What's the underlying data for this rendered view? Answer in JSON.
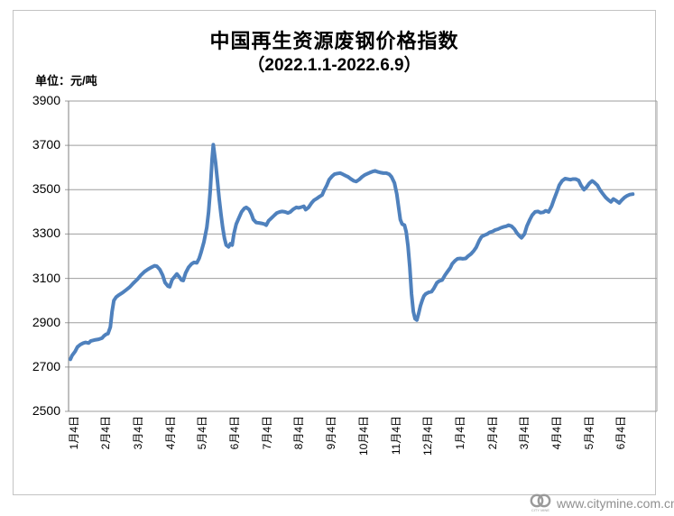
{
  "header": {
    "title_line1": "中国再生资源废钢价格指数",
    "title_line2": "（2022.1.1-2022.6.9）",
    "unit_label": "单位：元/吨"
  },
  "watermark": {
    "url_text": "www.citymine.com.cn",
    "logo_caption": "CITY MINE",
    "text_color": "#8f8f8f"
  },
  "chart_data": {
    "type": "line",
    "title": "中国再生资源废钢价格指数（2022.1.1-2022.6.9）",
    "ylabel": "单位：元/吨",
    "ylim": [
      2500,
      3900
    ],
    "y_ticks": [
      3900,
      3700,
      3500,
      3300,
      3100,
      2900,
      2700,
      2500
    ],
    "x_tick_labels": [
      "1月4日",
      "2月4日",
      "3月4日",
      "4月4日",
      "5月4日",
      "6月4日",
      "7月4日",
      "8月4日",
      "9月4日",
      "10月4日",
      "11月4日",
      "12月4日",
      "1月4日",
      "2月4日",
      "3月4日",
      "4月4日",
      "5月4日",
      "6月4日"
    ],
    "grid": "horizontal",
    "legend_position": "none",
    "line_color": "#4f81bd",
    "grid_color": "#9e9e9e",
    "axis_color": "#7f7f7f",
    "points": [
      [
        0.003,
        2735
      ],
      [
        0.006,
        2752
      ],
      [
        0.011,
        2770
      ],
      [
        0.015,
        2790
      ],
      [
        0.02,
        2801
      ],
      [
        0.025,
        2808
      ],
      [
        0.029,
        2811
      ],
      [
        0.034,
        2808
      ],
      [
        0.038,
        2818
      ],
      [
        0.044,
        2822
      ],
      [
        0.051,
        2825
      ],
      [
        0.057,
        2831
      ],
      [
        0.06,
        2840
      ],
      [
        0.064,
        2848
      ],
      [
        0.067,
        2851
      ],
      [
        0.071,
        2880
      ],
      [
        0.074,
        2950
      ],
      [
        0.077,
        3000
      ],
      [
        0.081,
        3016
      ],
      [
        0.086,
        3026
      ],
      [
        0.092,
        3036
      ],
      [
        0.098,
        3048
      ],
      [
        0.104,
        3061
      ],
      [
        0.11,
        3078
      ],
      [
        0.117,
        3096
      ],
      [
        0.123,
        3115
      ],
      [
        0.129,
        3130
      ],
      [
        0.135,
        3141
      ],
      [
        0.141,
        3150
      ],
      [
        0.146,
        3157
      ],
      [
        0.15,
        3155
      ],
      [
        0.155,
        3140
      ],
      [
        0.16,
        3114
      ],
      [
        0.164,
        3081
      ],
      [
        0.169,
        3065
      ],
      [
        0.172,
        3062
      ],
      [
        0.176,
        3094
      ],
      [
        0.181,
        3110
      ],
      [
        0.184,
        3120
      ],
      [
        0.189,
        3104
      ],
      [
        0.192,
        3092
      ],
      [
        0.195,
        3090
      ],
      [
        0.199,
        3124
      ],
      [
        0.204,
        3150
      ],
      [
        0.209,
        3165
      ],
      [
        0.213,
        3172
      ],
      [
        0.218,
        3170
      ],
      [
        0.222,
        3190
      ],
      [
        0.225,
        3215
      ],
      [
        0.23,
        3264
      ],
      [
        0.235,
        3330
      ],
      [
        0.238,
        3400
      ],
      [
        0.241,
        3500
      ],
      [
        0.244,
        3640
      ],
      [
        0.246,
        3703
      ],
      [
        0.25,
        3620
      ],
      [
        0.253,
        3540
      ],
      [
        0.256,
        3460
      ],
      [
        0.259,
        3390
      ],
      [
        0.262,
        3330
      ],
      [
        0.265,
        3280
      ],
      [
        0.268,
        3250
      ],
      [
        0.272,
        3242
      ],
      [
        0.275,
        3256
      ],
      [
        0.278,
        3250
      ],
      [
        0.281,
        3300
      ],
      [
        0.285,
        3345
      ],
      [
        0.29,
        3376
      ],
      [
        0.294,
        3400
      ],
      [
        0.299,
        3416
      ],
      [
        0.302,
        3420
      ],
      [
        0.307,
        3410
      ],
      [
        0.311,
        3388
      ],
      [
        0.314,
        3366
      ],
      [
        0.319,
        3352
      ],
      [
        0.324,
        3350
      ],
      [
        0.328,
        3348
      ],
      [
        0.333,
        3345
      ],
      [
        0.336,
        3340
      ],
      [
        0.34,
        3360
      ],
      [
        0.345,
        3372
      ],
      [
        0.35,
        3385
      ],
      [
        0.354,
        3395
      ],
      [
        0.359,
        3400
      ],
      [
        0.363,
        3402
      ],
      [
        0.368,
        3400
      ],
      [
        0.373,
        3395
      ],
      [
        0.377,
        3400
      ],
      [
        0.382,
        3412
      ],
      [
        0.387,
        3420
      ],
      [
        0.391,
        3418
      ],
      [
        0.396,
        3422
      ],
      [
        0.4,
        3425
      ],
      [
        0.403,
        3410
      ],
      [
        0.408,
        3420
      ],
      [
        0.413,
        3440
      ],
      [
        0.417,
        3452
      ],
      [
        0.422,
        3460
      ],
      [
        0.426,
        3468
      ],
      [
        0.431,
        3476
      ],
      [
        0.434,
        3495
      ],
      [
        0.439,
        3520
      ],
      [
        0.443,
        3545
      ],
      [
        0.448,
        3561
      ],
      [
        0.452,
        3570
      ],
      [
        0.457,
        3573
      ],
      [
        0.462,
        3575
      ],
      [
        0.466,
        3570
      ],
      [
        0.471,
        3563
      ],
      [
        0.475,
        3558
      ],
      [
        0.48,
        3548
      ],
      [
        0.485,
        3540
      ],
      [
        0.489,
        3537
      ],
      [
        0.494,
        3546
      ],
      [
        0.499,
        3558
      ],
      [
        0.503,
        3566
      ],
      [
        0.508,
        3572
      ],
      [
        0.512,
        3577
      ],
      [
        0.517,
        3582
      ],
      [
        0.521,
        3585
      ],
      [
        0.526,
        3580
      ],
      [
        0.531,
        3577
      ],
      [
        0.535,
        3575
      ],
      [
        0.54,
        3575
      ],
      [
        0.545,
        3570
      ],
      [
        0.549,
        3558
      ],
      [
        0.554,
        3530
      ],
      [
        0.558,
        3480
      ],
      [
        0.561,
        3420
      ],
      [
        0.564,
        3365
      ],
      [
        0.567,
        3345
      ],
      [
        0.571,
        3340
      ],
      [
        0.574,
        3310
      ],
      [
        0.577,
        3245
      ],
      [
        0.58,
        3150
      ],
      [
        0.583,
        3030
      ],
      [
        0.586,
        2950
      ],
      [
        0.589,
        2918
      ],
      [
        0.592,
        2912
      ],
      [
        0.595,
        2940
      ],
      [
        0.598,
        2975
      ],
      [
        0.601,
        3000
      ],
      [
        0.604,
        3020
      ],
      [
        0.607,
        3030
      ],
      [
        0.612,
        3037
      ],
      [
        0.617,
        3040
      ],
      [
        0.621,
        3055
      ],
      [
        0.626,
        3080
      ],
      [
        0.63,
        3088
      ],
      [
        0.635,
        3092
      ],
      [
        0.64,
        3115
      ],
      [
        0.644,
        3130
      ],
      [
        0.649,
        3148
      ],
      [
        0.652,
        3165
      ],
      [
        0.657,
        3180
      ],
      [
        0.661,
        3188
      ],
      [
        0.666,
        3190
      ],
      [
        0.67,
        3188
      ],
      [
        0.675,
        3190
      ],
      [
        0.679,
        3200
      ],
      [
        0.684,
        3210
      ],
      [
        0.689,
        3225
      ],
      [
        0.693,
        3240
      ],
      [
        0.698,
        3270
      ],
      [
        0.702,
        3288
      ],
      [
        0.707,
        3295
      ],
      [
        0.712,
        3300
      ],
      [
        0.716,
        3308
      ],
      [
        0.721,
        3312
      ],
      [
        0.725,
        3318
      ],
      [
        0.73,
        3322
      ],
      [
        0.735,
        3328
      ],
      [
        0.739,
        3332
      ],
      [
        0.744,
        3335
      ],
      [
        0.748,
        3340
      ],
      [
        0.753,
        3335
      ],
      [
        0.758,
        3322
      ],
      [
        0.762,
        3305
      ],
      [
        0.767,
        3290
      ],
      [
        0.77,
        3283
      ],
      [
        0.775,
        3300
      ],
      [
        0.779,
        3335
      ],
      [
        0.784,
        3365
      ],
      [
        0.788,
        3385
      ],
      [
        0.793,
        3400
      ],
      [
        0.798,
        3402
      ],
      [
        0.802,
        3396
      ],
      [
        0.807,
        3398
      ],
      [
        0.811,
        3405
      ],
      [
        0.816,
        3400
      ],
      [
        0.821,
        3425
      ],
      [
        0.825,
        3455
      ],
      [
        0.83,
        3490
      ],
      [
        0.834,
        3520
      ],
      [
        0.839,
        3540
      ],
      [
        0.844,
        3550
      ],
      [
        0.848,
        3548
      ],
      [
        0.853,
        3545
      ],
      [
        0.857,
        3548
      ],
      [
        0.862,
        3548
      ],
      [
        0.867,
        3542
      ],
      [
        0.871,
        3520
      ],
      [
        0.876,
        3500
      ],
      [
        0.88,
        3510
      ],
      [
        0.885,
        3528
      ],
      [
        0.89,
        3540
      ],
      [
        0.894,
        3532
      ],
      [
        0.899,
        3520
      ],
      [
        0.903,
        3500
      ],
      [
        0.908,
        3482
      ],
      [
        0.913,
        3465
      ],
      [
        0.917,
        3455
      ],
      [
        0.922,
        3445
      ],
      [
        0.926,
        3458
      ],
      [
        0.931,
        3450
      ],
      [
        0.936,
        3440
      ],
      [
        0.94,
        3452
      ],
      [
        0.945,
        3465
      ],
      [
        0.949,
        3472
      ],
      [
        0.954,
        3478
      ],
      [
        0.959,
        3480
      ]
    ]
  }
}
